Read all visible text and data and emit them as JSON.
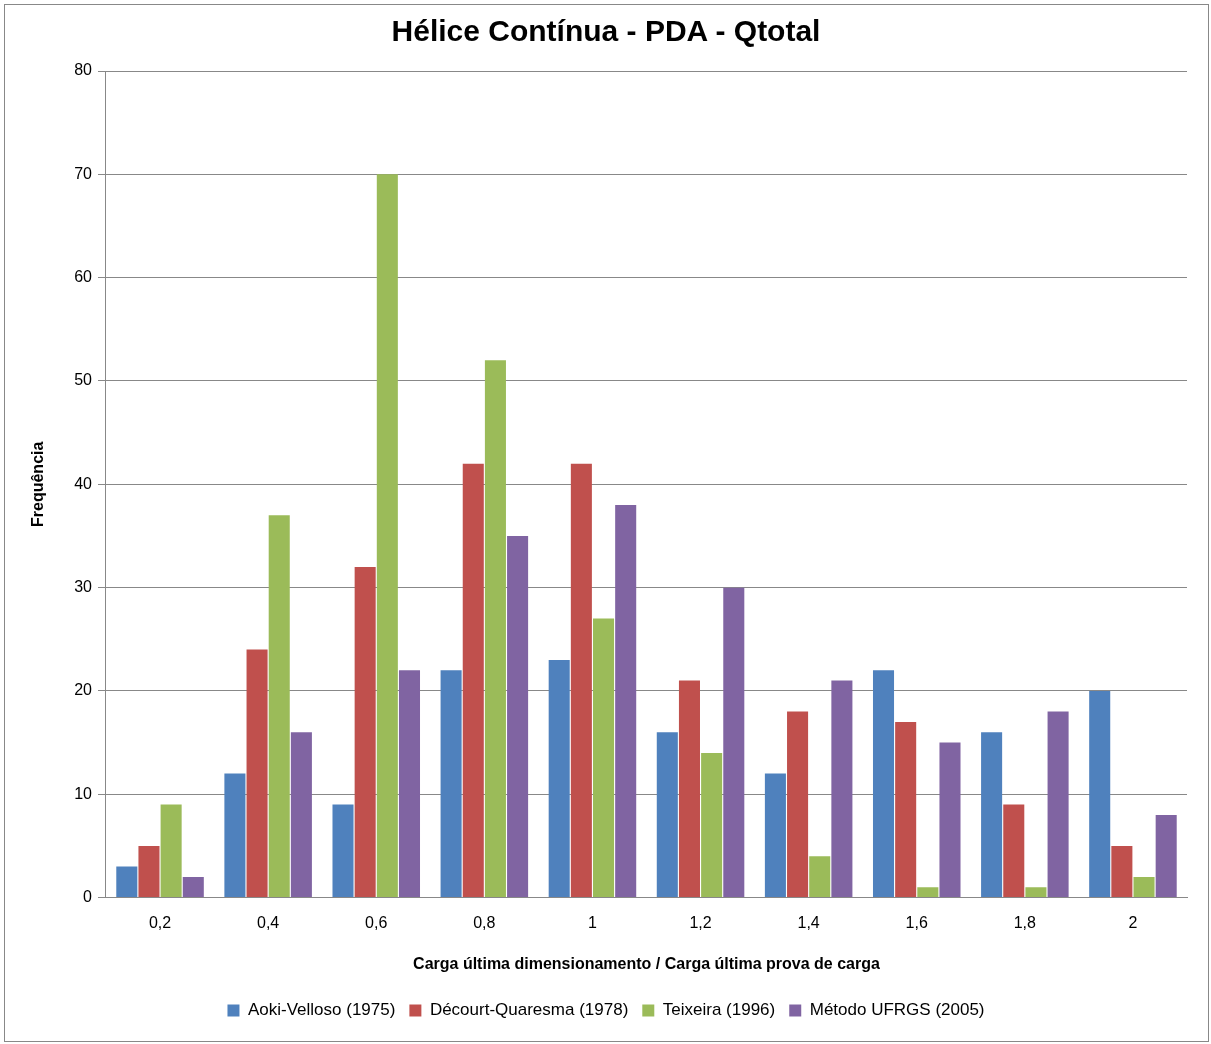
{
  "chart_data": {
    "type": "bar",
    "title": "Hélice Contínua - PDA - Qtotal",
    "xlabel": "Carga última dimensionamento / Carga última prova de carga",
    "ylabel": "Frequência",
    "categories": [
      "0,2",
      "0,4",
      "0,6",
      "0,8",
      "1",
      "1,2",
      "1,4",
      "1,6",
      "1,8",
      "2"
    ],
    "series": [
      {
        "name": "Aoki-Velloso (1975)",
        "color": "#4f81bd",
        "values": [
          3,
          12,
          9,
          22,
          23,
          16,
          12,
          22,
          16,
          20
        ]
      },
      {
        "name": "Décourt-Quaresma (1978)",
        "color": "#c0504d",
        "values": [
          5,
          24,
          32,
          42,
          42,
          21,
          18,
          17,
          9,
          5
        ]
      },
      {
        "name": "Teixeira (1996)",
        "color": "#9bbb59",
        "values": [
          9,
          37,
          70,
          52,
          27,
          14,
          4,
          1,
          1,
          2
        ]
      },
      {
        "name": "Método UFRGS (2005)",
        "color": "#8064a2",
        "values": [
          2,
          16,
          22,
          35,
          38,
          30,
          21,
          15,
          18,
          8
        ]
      }
    ],
    "ylim": [
      0,
      80
    ],
    "yticks": [
      0,
      10,
      20,
      30,
      40,
      50,
      60,
      70,
      80
    ],
    "grid": "y",
    "legend": "bottom"
  }
}
